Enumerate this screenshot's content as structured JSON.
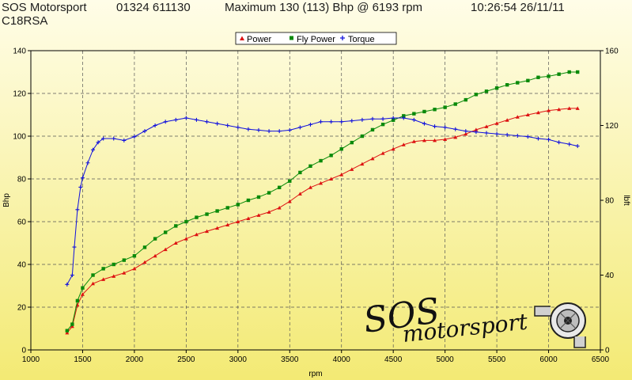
{
  "header": {
    "company": "SOS Motorsport",
    "phone": "01324 611130",
    "summary": "Maximum 130 (113) Bhp @ 6193 rpm",
    "timestamp": "10:26:54 26/11/11",
    "vehicle": "C18RSA"
  },
  "logo": {
    "line1": "SOS",
    "line2": "motorsport",
    "icon": "turbocharger-icon"
  },
  "colors": {
    "background_gradient": [
      "#fffde8",
      "#f3ea74"
    ],
    "power": "#dd1111",
    "fly_power": "#0a8a0a",
    "torque": "#1111dd",
    "grid": "#555555",
    "axis": "#000000"
  },
  "chart_data": {
    "type": "line",
    "xlabel": "rpm",
    "ylabel": "Bhp",
    "y2label": "lbft",
    "xlim": [
      1000,
      6500
    ],
    "ylim": [
      0,
      140
    ],
    "y2lim": [
      0,
      160
    ],
    "x_ticks": [
      1000,
      1500,
      2000,
      2500,
      3000,
      3500,
      4000,
      4500,
      5000,
      5500,
      6000,
      6500
    ],
    "y_ticks": [
      0,
      20,
      40,
      60,
      80,
      100,
      120,
      140
    ],
    "y2_ticks": [
      0,
      40,
      80,
      120,
      160
    ],
    "grid": true,
    "legend_position": "top",
    "series": [
      {
        "name": "Power",
        "axis": "left",
        "marker": "triangle",
        "color": "#dd1111",
        "points": [
          [
            1350,
            8
          ],
          [
            1400,
            11
          ],
          [
            1450,
            21
          ],
          [
            1500,
            26
          ],
          [
            1600,
            31
          ],
          [
            1700,
            33
          ],
          [
            1800,
            34.5
          ],
          [
            1900,
            36
          ],
          [
            2000,
            38
          ],
          [
            2100,
            41
          ],
          [
            2200,
            44
          ],
          [
            2300,
            47
          ],
          [
            2400,
            50
          ],
          [
            2500,
            52
          ],
          [
            2600,
            54
          ],
          [
            2700,
            55.5
          ],
          [
            2800,
            57
          ],
          [
            2900,
            58.5
          ],
          [
            3000,
            60
          ],
          [
            3100,
            61.5
          ],
          [
            3200,
            63
          ],
          [
            3300,
            64.5
          ],
          [
            3400,
            66.5
          ],
          [
            3500,
            69.5
          ],
          [
            3600,
            73
          ],
          [
            3700,
            76
          ],
          [
            3800,
            78
          ],
          [
            3900,
            80
          ],
          [
            4000,
            82
          ],
          [
            4100,
            84.5
          ],
          [
            4200,
            87
          ],
          [
            4300,
            89.5
          ],
          [
            4400,
            92
          ],
          [
            4500,
            94
          ],
          [
            4600,
            96
          ],
          [
            4700,
            97.5
          ],
          [
            4800,
            98
          ],
          [
            4900,
            98
          ],
          [
            5000,
            98.5
          ],
          [
            5100,
            99.5
          ],
          [
            5200,
            101
          ],
          [
            5300,
            103
          ],
          [
            5400,
            104.5
          ],
          [
            5500,
            106
          ],
          [
            5600,
            107.5
          ],
          [
            5700,
            109
          ],
          [
            5800,
            110
          ],
          [
            5900,
            111
          ],
          [
            6000,
            112
          ],
          [
            6100,
            112.5
          ],
          [
            6200,
            113
          ],
          [
            6280,
            113
          ]
        ]
      },
      {
        "name": "Fly Power",
        "axis": "left",
        "marker": "square",
        "color": "#0a8a0a",
        "points": [
          [
            1350,
            9
          ],
          [
            1400,
            12
          ],
          [
            1450,
            23
          ],
          [
            1500,
            29
          ],
          [
            1600,
            35
          ],
          [
            1700,
            38
          ],
          [
            1800,
            40
          ],
          [
            1900,
            42
          ],
          [
            2000,
            44
          ],
          [
            2100,
            48
          ],
          [
            2200,
            52
          ],
          [
            2300,
            55
          ],
          [
            2400,
            58
          ],
          [
            2500,
            60
          ],
          [
            2600,
            62
          ],
          [
            2700,
            63.5
          ],
          [
            2800,
            65
          ],
          [
            2900,
            66.5
          ],
          [
            3000,
            68
          ],
          [
            3100,
            70
          ],
          [
            3200,
            71.5
          ],
          [
            3300,
            73.5
          ],
          [
            3400,
            76
          ],
          [
            3500,
            79
          ],
          [
            3600,
            83
          ],
          [
            3700,
            86
          ],
          [
            3800,
            88.5
          ],
          [
            3900,
            91
          ],
          [
            4000,
            94
          ],
          [
            4100,
            97
          ],
          [
            4200,
            100
          ],
          [
            4300,
            103
          ],
          [
            4400,
            105.5
          ],
          [
            4500,
            107.5
          ],
          [
            4600,
            109.5
          ],
          [
            4700,
            110.5
          ],
          [
            4800,
            111.5
          ],
          [
            4900,
            112.5
          ],
          [
            5000,
            113.5
          ],
          [
            5100,
            115
          ],
          [
            5200,
            117
          ],
          [
            5300,
            119.5
          ],
          [
            5400,
            121
          ],
          [
            5500,
            122.5
          ],
          [
            5600,
            124
          ],
          [
            5700,
            125
          ],
          [
            5800,
            126
          ],
          [
            5900,
            127.5
          ],
          [
            6000,
            128
          ],
          [
            6100,
            129
          ],
          [
            6200,
            130
          ],
          [
            6280,
            130
          ]
        ]
      },
      {
        "name": "Torque",
        "axis": "right",
        "marker": "plus",
        "color": "#1111dd",
        "points": [
          [
            1350,
            35
          ],
          [
            1400,
            40
          ],
          [
            1420,
            55
          ],
          [
            1450,
            75
          ],
          [
            1480,
            87
          ],
          [
            1500,
            92
          ],
          [
            1550,
            100
          ],
          [
            1600,
            107
          ],
          [
            1650,
            111
          ],
          [
            1700,
            113
          ],
          [
            1800,
            113
          ],
          [
            1900,
            112
          ],
          [
            2000,
            114
          ],
          [
            2100,
            117
          ],
          [
            2200,
            120
          ],
          [
            2300,
            122
          ],
          [
            2400,
            123
          ],
          [
            2500,
            124
          ],
          [
            2600,
            123
          ],
          [
            2700,
            122
          ],
          [
            2800,
            121
          ],
          [
            2900,
            120
          ],
          [
            3000,
            119
          ],
          [
            3100,
            118
          ],
          [
            3200,
            117.5
          ],
          [
            3300,
            117
          ],
          [
            3400,
            117
          ],
          [
            3500,
            117.5
          ],
          [
            3600,
            119
          ],
          [
            3700,
            120.5
          ],
          [
            3800,
            122
          ],
          [
            3900,
            122
          ],
          [
            4000,
            122
          ],
          [
            4100,
            122.5
          ],
          [
            4200,
            123
          ],
          [
            4300,
            123.5
          ],
          [
            4400,
            123.5
          ],
          [
            4500,
            124
          ],
          [
            4600,
            124
          ],
          [
            4700,
            123
          ],
          [
            4800,
            121
          ],
          [
            4900,
            119.5
          ],
          [
            5000,
            119
          ],
          [
            5100,
            118
          ],
          [
            5200,
            117
          ],
          [
            5300,
            116.5
          ],
          [
            5400,
            116
          ],
          [
            5500,
            115.5
          ],
          [
            5600,
            115
          ],
          [
            5700,
            114.5
          ],
          [
            5800,
            114
          ],
          [
            5900,
            113
          ],
          [
            6000,
            112.5
          ],
          [
            6100,
            111
          ],
          [
            6200,
            110
          ],
          [
            6280,
            109
          ]
        ]
      }
    ]
  }
}
